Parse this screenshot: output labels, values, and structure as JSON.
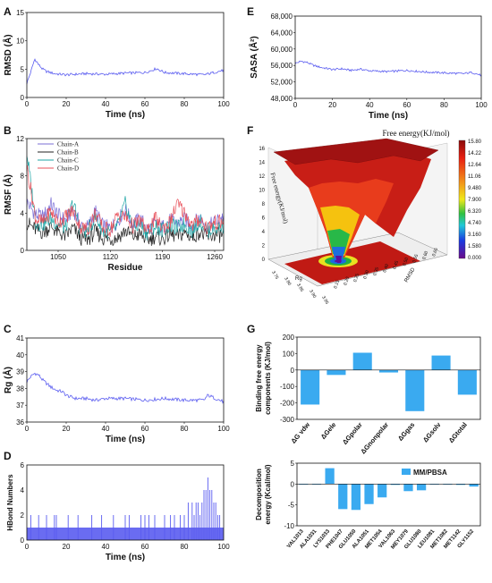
{
  "panels": {
    "A": {
      "label": "A"
    },
    "B": {
      "label": "B"
    },
    "C": {
      "label": "C"
    },
    "D": {
      "label": "D"
    },
    "E": {
      "label": "E"
    },
    "F": {
      "label": "F"
    },
    "G": {
      "label": "G"
    }
  },
  "colors": {
    "blue": "#5a5cf0",
    "chainA": "#7b6fd6",
    "chainB": "#222222",
    "chainC": "#1fa6a6",
    "chainD": "#e8505a",
    "bar": "#3aaaf0",
    "surface_top": "#b01818"
  },
  "chart_data": [
    {
      "id": "A",
      "type": "line",
      "xlabel": "Time (ns)",
      "ylabel": "RMSD (Å)",
      "xlim": [
        0,
        100
      ],
      "ylim": [
        0,
        15
      ],
      "xticks": [
        "0",
        "20",
        "40",
        "60",
        "80",
        "100"
      ],
      "yticks": [
        "0",
        "5",
        "10",
        "15"
      ],
      "x": [
        0,
        2,
        4,
        6,
        8,
        10,
        14,
        20,
        30,
        40,
        50,
        60,
        66,
        70,
        80,
        90,
        100
      ],
      "y": [
        2.5,
        4.5,
        6.8,
        5.8,
        5.0,
        4.6,
        4.2,
        4.0,
        4.2,
        4.1,
        4.3,
        4.4,
        5.1,
        4.4,
        4.2,
        4.0,
        4.8
      ]
    },
    {
      "id": "B",
      "type": "line",
      "xlabel": "Residue",
      "ylabel": "RMSF (Å)",
      "xlim": [
        1008,
        1272
      ],
      "ylim": [
        0,
        12
      ],
      "xticks": [
        "1050",
        "1120",
        "1190",
        "1260"
      ],
      "yticks": [
        "0",
        "4",
        "8",
        "12"
      ],
      "series": [
        {
          "name": "Chain-A",
          "x": [
            1008,
            1020,
            1030,
            1040,
            1050,
            1060,
            1070,
            1080,
            1090,
            1100,
            1110,
            1120,
            1130,
            1140,
            1150,
            1160,
            1170,
            1180,
            1190,
            1200,
            1210,
            1220,
            1230,
            1240,
            1250,
            1260,
            1270
          ],
          "y": [
            5.2,
            3.8,
            3.6,
            5.0,
            3.8,
            3.2,
            4.5,
            2.6,
            2.5,
            4.2,
            2.6,
            2.4,
            3.2,
            4.4,
            2.8,
            3.4,
            2.3,
            2.8,
            2.5,
            3.2,
            2.9,
            3.3,
            2.7,
            3.6,
            2.5,
            3.0,
            3.6
          ]
        },
        {
          "name": "Chain-B",
          "x": [
            1008,
            1020,
            1030,
            1040,
            1050,
            1060,
            1070,
            1080,
            1090,
            1100,
            1110,
            1120,
            1130,
            1140,
            1150,
            1160,
            1170,
            1180,
            1190,
            1200,
            1210,
            1220,
            1230,
            1240,
            1250,
            1260,
            1270
          ],
          "y": [
            3.0,
            2.2,
            1.9,
            2.6,
            1.9,
            1.5,
            2.4,
            1.3,
            1.2,
            2.0,
            1.3,
            1.2,
            1.4,
            2.1,
            1.5,
            1.7,
            1.1,
            1.5,
            1.2,
            1.7,
            1.5,
            1.9,
            1.4,
            2.0,
            1.3,
            1.7,
            1.6
          ]
        },
        {
          "name": "Chain-C",
          "x": [
            1008,
            1020,
            1030,
            1040,
            1050,
            1060,
            1070,
            1080,
            1090,
            1100,
            1110,
            1120,
            1130,
            1140,
            1150,
            1160,
            1170,
            1180,
            1190,
            1200,
            1210,
            1220,
            1230,
            1240,
            1250,
            1260,
            1270
          ],
          "y": [
            10.5,
            3.0,
            2.8,
            3.4,
            2.8,
            2.4,
            5.2,
            2.0,
            2.1,
            3.6,
            2.1,
            1.9,
            2.6,
            5.0,
            2.4,
            2.8,
            1.8,
            2.6,
            2.2,
            2.7,
            2.4,
            2.8,
            2.1,
            3.2,
            2.1,
            2.4,
            2.6
          ]
        },
        {
          "name": "Chain-D",
          "x": [
            1008,
            1020,
            1030,
            1040,
            1050,
            1060,
            1070,
            1080,
            1090,
            1100,
            1110,
            1120,
            1130,
            1140,
            1150,
            1160,
            1170,
            1180,
            1190,
            1200,
            1210,
            1220,
            1230,
            1240,
            1250,
            1260,
            1270
          ],
          "y": [
            9.0,
            3.4,
            3.0,
            4.2,
            3.0,
            3.6,
            4.3,
            2.4,
            2.3,
            4.0,
            2.4,
            2.2,
            3.8,
            3.6,
            2.6,
            3.2,
            2.0,
            3.4,
            2.4,
            3.0,
            5.0,
            4.0,
            2.6,
            3.4,
            2.4,
            3.0,
            3.0
          ]
        }
      ]
    },
    {
      "id": "C",
      "type": "line",
      "xlabel": "Time (ns)",
      "ylabel": "Rg (Å)",
      "xlim": [
        0,
        100
      ],
      "ylim": [
        36,
        41
      ],
      "xticks": [
        "0",
        "20",
        "40",
        "60",
        "80",
        "100"
      ],
      "yticks": [
        "36",
        "37",
        "38",
        "39",
        "40",
        "41"
      ],
      "x": [
        0,
        2,
        4,
        6,
        8,
        10,
        12,
        15,
        18,
        20,
        22,
        25,
        30,
        35,
        40,
        50,
        60,
        70,
        80,
        90,
        92,
        96,
        100
      ],
      "y": [
        38.4,
        38.7,
        38.9,
        38.8,
        38.5,
        38.3,
        38.1,
        37.9,
        37.8,
        37.6,
        37.5,
        37.4,
        37.4,
        37.3,
        37.4,
        37.4,
        37.3,
        37.4,
        37.3,
        37.3,
        37.6,
        37.4,
        37.2
      ]
    },
    {
      "id": "D",
      "type": "line",
      "xlabel": "Time (ns)",
      "ylabel": "HBond Numbers",
      "xlim": [
        0,
        100
      ],
      "ylim": [
        0,
        6
      ],
      "xticks": [
        "0",
        "20",
        "40",
        "60",
        "80",
        "100"
      ],
      "yticks": [
        "0",
        "2",
        "4",
        "6"
      ],
      "baseline": 1,
      "spikes_x": [
        2,
        6,
        10,
        14,
        15,
        21,
        26,
        33,
        38,
        44,
        50,
        52,
        58,
        60,
        62,
        65,
        70,
        73,
        75,
        78,
        80,
        82,
        84,
        85,
        86,
        87,
        88,
        89,
        90,
        91,
        92,
        93,
        94,
        95,
        96,
        97,
        98
      ],
      "spikes_y": [
        2,
        2,
        2,
        2,
        2,
        2,
        2,
        2,
        2,
        2,
        2,
        2,
        2,
        2,
        2,
        2,
        2,
        2,
        2,
        2,
        2,
        3,
        3,
        2,
        3,
        3,
        2,
        3,
        4,
        4,
        5,
        4,
        4,
        3,
        3,
        2,
        2
      ]
    },
    {
      "id": "E",
      "type": "line",
      "xlabel": "Time (ns)",
      "ylabel": "SASA (Å²)",
      "xlim": [
        0,
        100
      ],
      "ylim": [
        48000,
        68000
      ],
      "xticks": [
        "0",
        "20",
        "40",
        "60",
        "80",
        "100"
      ],
      "yticks": [
        "48,000",
        "52,000",
        "56,000",
        "60,000",
        "64,000",
        "68,000"
      ],
      "x": [
        0,
        3,
        6,
        10,
        14,
        18,
        20,
        25,
        30,
        35,
        40,
        50,
        60,
        70,
        80,
        90,
        95,
        100
      ],
      "y": [
        56500,
        57000,
        56800,
        56000,
        55500,
        55200,
        55000,
        55200,
        54800,
        55100,
        54700,
        54500,
        54800,
        54400,
        54200,
        54000,
        54300,
        53600
      ]
    },
    {
      "id": "F",
      "type": "heatmap",
      "title": "Free energy(KJ/mol)",
      "ylabel": "Free energy(KJ/mol)",
      "xlabel": "RMSD",
      "ylabel2": "Rg",
      "colorbar_ticks": [
        "15.80",
        "14.22",
        "12.64",
        "11.06",
        "9.480",
        "7.900",
        "6.320",
        "4.740",
        "3.160",
        "1.580",
        "0.000"
      ],
      "zticks": [
        "0",
        "2",
        "4",
        "6",
        "8",
        "10",
        "12",
        "14",
        "16"
      ],
      "rg_ticks": [
        "3.75",
        "3.80",
        "3.85",
        "3.90",
        "3.95"
      ],
      "rmsd_ticks": [
        "0.15",
        "0.20",
        "0.25",
        "0.30",
        "0.35",
        "0.40",
        "0.45",
        "0.50",
        "0.55",
        "0.60",
        "0.65"
      ]
    },
    {
      "id": "G1",
      "type": "bar",
      "ylabel": "Binding free energy components (KJ/mol)",
      "ylim": [
        -300,
        200
      ],
      "yticks": [
        "200",
        "100",
        "0",
        "-100",
        "-200",
        "-300"
      ],
      "categories": [
        "ΔG vdw",
        "ΔGele",
        "ΔGpolar",
        "ΔGnonpolar",
        "ΔGgas",
        "ΔGsolv",
        "ΔGtotal"
      ],
      "values": [
        -210,
        -30,
        105,
        -15,
        -250,
        88,
        -150
      ]
    },
    {
      "id": "G2",
      "type": "bar",
      "ylabel": "Decomposition energy (Kcal/mol)",
      "ylim": [
        -10,
        5
      ],
      "yticks": [
        "5",
        "0",
        "-5",
        "-10"
      ],
      "legend": "MM/PBSA",
      "categories": [
        "VAL1013",
        "ALA1031",
        "LYS1033",
        "PHE1047",
        "GLU1050",
        "ALA1051",
        "MET1054",
        "VAL1063",
        "MEY1079",
        "GLU1080",
        "LEU1081",
        "MET1082",
        "MET1142",
        "GLY1152"
      ],
      "values": [
        -0.05,
        -0.05,
        3.8,
        -6.0,
        -6.2,
        -4.8,
        -3.2,
        -0.2,
        -1.7,
        -1.5,
        -0.05,
        -0.1,
        -0.2,
        -0.6
      ]
    }
  ]
}
